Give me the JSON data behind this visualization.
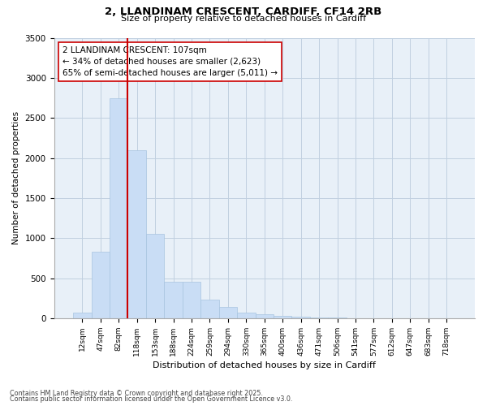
{
  "title1": "2, LLANDINAM CRESCENT, CARDIFF, CF14 2RB",
  "title2": "Size of property relative to detached houses in Cardiff",
  "xlabel": "Distribution of detached houses by size in Cardiff",
  "ylabel": "Number of detached properties",
  "categories": [
    "12sqm",
    "47sqm",
    "82sqm",
    "118sqm",
    "153sqm",
    "188sqm",
    "224sqm",
    "259sqm",
    "294sqm",
    "330sqm",
    "365sqm",
    "400sqm",
    "436sqm",
    "471sqm",
    "506sqm",
    "541sqm",
    "577sqm",
    "612sqm",
    "647sqm",
    "683sqm",
    "718sqm"
  ],
  "values": [
    70,
    830,
    2750,
    2100,
    1050,
    460,
    460,
    230,
    140,
    75,
    55,
    25,
    15,
    8,
    5,
    3,
    2,
    1,
    1,
    1,
    0
  ],
  "bar_color": "#c9ddf5",
  "bar_edge_color": "#a8c4e0",
  "vline_color": "#cc0000",
  "annotation_text": "2 LLANDINAM CRESCENT: 107sqm\n← 34% of detached houses are smaller (2,623)\n65% of semi-detached houses are larger (5,011) →",
  "annotation_box_color": "#ffffff",
  "annotation_box_edge": "#cc0000",
  "ylim": [
    0,
    3500
  ],
  "yticks": [
    0,
    500,
    1000,
    1500,
    2000,
    2500,
    3000,
    3500
  ],
  "grid_color": "#c0d0e0",
  "background_color": "#e8f0f8",
  "footer1": "Contains HM Land Registry data © Crown copyright and database right 2025.",
  "footer2": "Contains public sector information licensed under the Open Government Licence v3.0."
}
